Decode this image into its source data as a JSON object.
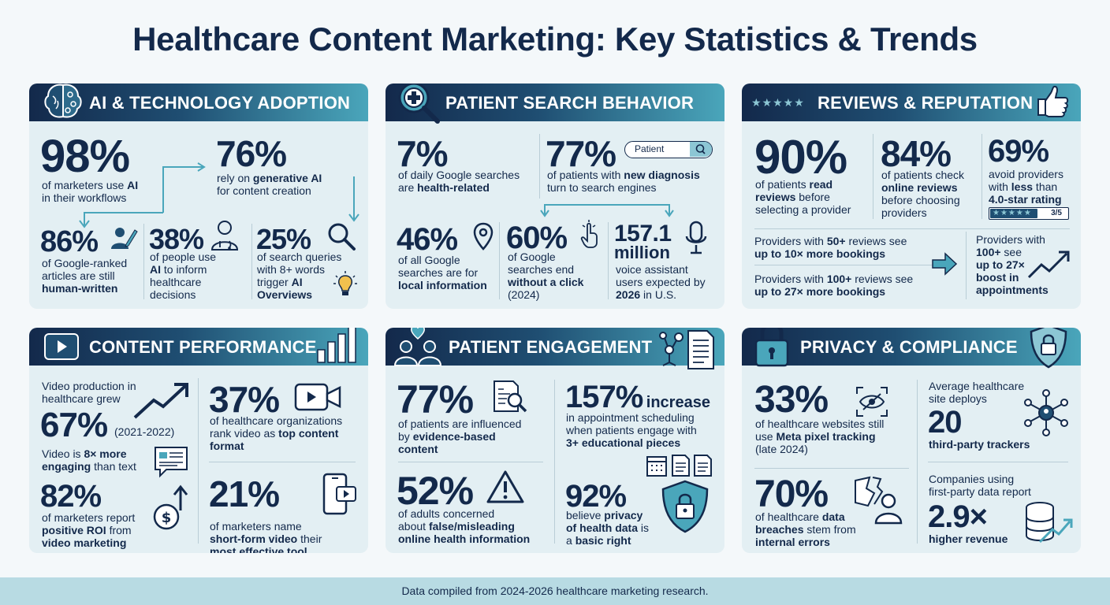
{
  "title": "Healthcare Content Marketing: Key Statistics & Trends",
  "footer": "Data compiled from 2024-2026 healthcare marketing research.",
  "colors": {
    "navy": "#13294b",
    "teal": "#4aa6bb",
    "panel": "#e3eff3",
    "footer": "#b8dbe3"
  },
  "ai": {
    "heading": "AI & TECHNOLOGY ADOPTION",
    "s1_value": "98%",
    "s1_t1": "of marketers use ",
    "s1_b1": "AI",
    "s1_t2": "in their workflows",
    "s2_value": "76%",
    "s2_t1": "rely on ",
    "s2_b1": "generative AI",
    "s2_t2": "for content creation",
    "s3_value": "86%",
    "s3_t1": "of Google-ranked",
    "s3_t2": "articles are still",
    "s3_b1": "human-written",
    "s4_value": "38%",
    "s4_t1": "of people use",
    "s4_b1": "AI",
    "s4_t2": " to inform",
    "s4_t3": "healthcare",
    "s4_t4": "decisions",
    "s5_value": "25%",
    "s5_t1": "of search queries",
    "s5_t2": "with 8+ words",
    "s5_t3": "trigger ",
    "s5_b1": "AI",
    "s5_b2": "Overviews"
  },
  "search": {
    "heading": "PATIENT SEARCH BEHAVIOR",
    "search_placeholder": "Patient",
    "s1_value": "7%",
    "s1_t1": "of daily Google searches",
    "s1_t2": "are ",
    "s1_b1": "health-related",
    "s2_value": "77%",
    "s2_t1": "of patients with ",
    "s2_b1": "new diagnosis",
    "s2_t2": "turn to search engines",
    "s3_value": "46%",
    "s3_t1": "of all Google",
    "s3_t2": "searches are for",
    "s3_b1": "local information",
    "s4_value": "60%",
    "s4_t1": "of Google",
    "s4_t2": "searches end",
    "s4_b1": "without a click",
    "s4_t3": "(2024)",
    "s5_value": "157.1",
    "s5_value2": "million",
    "s5_t1": "voice assistant",
    "s5_t2": "users expected by",
    "s5_b1": "2026",
    "s5_t3": " in U.S."
  },
  "reviews": {
    "heading": "REVIEWS & REPUTATION",
    "stars": "★★★★★",
    "s1_value": "90%",
    "s1_t1": "of patients ",
    "s1_b1": "read",
    "s1_b2": "reviews",
    "s1_t2": " before",
    "s1_t3": "selecting a provider",
    "s2_value": "84%",
    "s2_t1": "of patients check",
    "s2_b1": "online reviews",
    "s2_t2": "before choosing",
    "s2_t3": "providers",
    "s3_value": "69%",
    "s3_t1": "avoid providers",
    "s3_t2": "with ",
    "s3_b1": "less",
    "s3_t3": " than",
    "s3_b2": "4.0-star rating",
    "rating_stars": "★★★★★",
    "rating_label": "3/5",
    "rating_fraction": 0.6,
    "b1_t1": "Providers with ",
    "b1_b1": "50+",
    "b1_t2": " reviews see",
    "b1_b2": "up to 10× more bookings",
    "b2_t1": "Providers with ",
    "b2_b1": "100+",
    "b2_t2": " reviews see",
    "b2_b2": "up to 27× more bookings",
    "b3_t1": "Providers with",
    "b3_b1": "100+",
    "b3_t2": " see",
    "b3_b2": "up to 27×",
    "b3_b3": "boost in",
    "b3_b4": "appointments"
  },
  "content": {
    "heading": "CONTENT PERFORMANCE",
    "s1_t1": "Video production in",
    "s1_t2": "healthcare grew",
    "s1_value": "67%",
    "s1_t3": "(2021-2022)",
    "s2_t1": "Video is ",
    "s2_b1": "8× more",
    "s2_b2": "engaging",
    "s2_t2": " than text",
    "s3_value": "82%",
    "s3_t1": "of marketers report",
    "s3_b1": "positive ROI",
    "s3_t2": " from",
    "s3_b2": "video marketing",
    "s4_value": "37%",
    "s4_t1": "of healthcare organizations",
    "s4_t2": "rank video as ",
    "s4_b1": "top content",
    "s4_b2": "format",
    "s5_value": "21%",
    "s5_t1": "of marketers name",
    "s5_b1": "short-form video",
    "s5_t2": " their",
    "s5_b2": "most effective tool"
  },
  "engagement": {
    "heading": "PATIENT ENGAGEMENT",
    "s1_value": "77%",
    "s1_t1": "of patients are influenced",
    "s1_t2": "by ",
    "s1_b1": "evidence-based",
    "s1_b2": "content",
    "s2_value": "157%",
    "s2_b1": "increase",
    "s2_t1": "in appointment scheduling",
    "s2_t2": "when patients engage with",
    "s2_b2": "3+ educational pieces",
    "s3_value": "52%",
    "s3_t1": "of adults concerned",
    "s3_t2": "about ",
    "s3_b1": "false/misleading",
    "s3_b2": "online health information",
    "s4_value": "92%",
    "s4_t1": "believe ",
    "s4_b1": "privacy",
    "s4_b2": "of health data",
    "s4_t2": " is",
    "s4_t3": "a ",
    "s4_b3": "basic right"
  },
  "privacy": {
    "heading": "PRIVACY & COMPLIANCE",
    "s1_value": "33%",
    "s1_t1": "of healthcare websites still",
    "s1_t2": "use ",
    "s1_b1": "Meta pixel tracking",
    "s1_t3": "(late 2024)",
    "s2_t1": "Average healthcare",
    "s2_t2": "site deploys",
    "s2_value": "20",
    "s2_b1": "third-party trackers",
    "s3_value": "70%",
    "s3_t1": "of healthcare ",
    "s3_b1": "data",
    "s3_b2": "breaches",
    "s3_t2": " stem from",
    "s3_b3": "internal errors",
    "s4_t1": "Companies using",
    "s4_t2": "first-party data report",
    "s4_value": "2.9×",
    "s4_b1": "higher revenue"
  }
}
